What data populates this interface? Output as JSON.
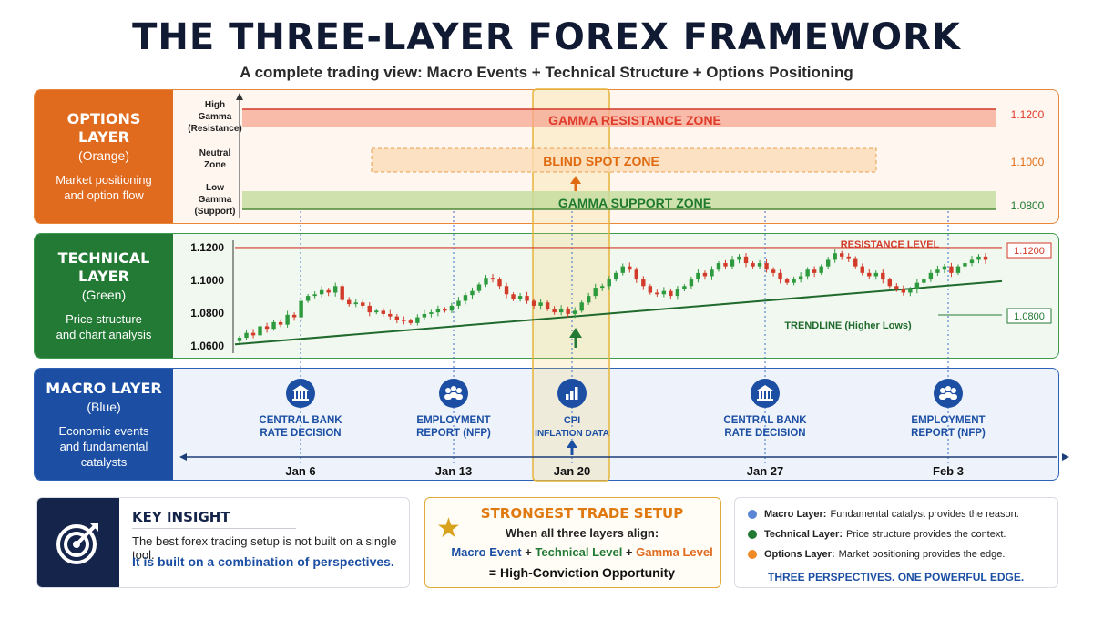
{
  "title": "THE THREE-LAYER FOREX FRAMEWORK",
  "subtitle": "A complete trading view: Macro Events + Technical Structure + Options Positioning",
  "layers": {
    "options": {
      "name": "OPTIONS LAYER",
      "color_name": "(Orange)",
      "desc1": "Market positioning",
      "desc2": "and option flow"
    },
    "technical": {
      "name": "TECHNICAL LAYER",
      "color_name": "(Green)",
      "desc1": "Price structure",
      "desc2": "and chart analysis"
    },
    "macro": {
      "name": "MACRO LAYER",
      "color_name": "(Blue)",
      "desc1": "Economic events",
      "desc2": "and fundamental",
      "desc3": "catalysts"
    }
  },
  "options_panel": {
    "axis_labels": [
      {
        "lines": [
          "High",
          "Gamma",
          "(Resistance)"
        ]
      },
      {
        "lines": [
          "Neutral",
          "Zone"
        ]
      },
      {
        "lines": [
          "Low",
          "Gamma",
          "(Support)"
        ]
      }
    ],
    "zones": [
      {
        "label": "GAMMA RESISTANCE ZONE",
        "price": "1.1200",
        "color": "#e03a2a"
      },
      {
        "label": "BLIND SPOT ZONE",
        "price": "1.1000",
        "color": "#e06a10"
      },
      {
        "label": "GAMMA SUPPORT ZONE",
        "price": "1.0800",
        "color": "#1f7a2f"
      }
    ]
  },
  "chart_data": {
    "type": "candlestick",
    "yticks": [
      "1.1200",
      "1.1000",
      "1.0800",
      "1.0600"
    ],
    "ylim": [
      1.0545,
      1.1255
    ],
    "resistance": {
      "label": "RESISTANCE LEVEL",
      "value": 1.12,
      "value_label": "1.1200"
    },
    "trendline": {
      "label": "TRENDLINE (Higher Lows)",
      "start": 1.061,
      "end": 1.0995
    },
    "support": {
      "value_label": "1.0800"
    },
    "closes": [
      1.065,
      1.068,
      1.0665,
      1.072,
      1.0705,
      1.0745,
      1.073,
      1.079,
      1.0775,
      1.0875,
      1.0905,
      1.0915,
      1.094,
      1.0925,
      1.0965,
      1.088,
      1.0855,
      1.0865,
      1.0845,
      1.0805,
      1.0815,
      1.0795,
      1.078,
      1.076,
      1.0755,
      1.074,
      1.0775,
      1.0795,
      1.0805,
      1.0825,
      1.0815,
      1.0845,
      1.0875,
      1.091,
      1.0935,
      1.0975,
      1.1015,
      1.1005,
      1.0965,
      1.0915,
      1.0885,
      1.0905,
      1.0875,
      1.0845,
      1.0865,
      1.0825,
      1.0805,
      1.0825,
      1.0795,
      1.0815,
      1.0865,
      1.0905,
      1.0955,
      1.0965,
      1.1005,
      1.1045,
      1.1085,
      1.1065,
      1.1005,
      1.0965,
      1.0925,
      1.0915,
      1.0935,
      1.0905,
      1.0945,
      1.0965,
      1.1005,
      1.1045,
      1.1025,
      1.1065,
      1.1105,
      1.1085,
      1.1125,
      1.1145,
      1.1105,
      1.1085,
      1.1105,
      1.1065,
      1.1045,
      1.1005,
      1.0985,
      1.1005,
      1.1025,
      1.1065,
      1.1045,
      1.1085,
      1.1125,
      1.1165,
      1.1145,
      1.1135,
      1.1085,
      1.1045,
      1.1025,
      1.1045,
      1.1005,
      1.0965,
      1.0945,
      1.0925,
      1.0945,
      1.0985,
      1.1005,
      1.1045,
      1.1065,
      1.1085,
      1.1045,
      1.1085,
      1.1105,
      1.1125,
      1.1145,
      1.1125
    ]
  },
  "macro_panel": {
    "events": [
      {
        "icon": "bank-icon",
        "line1": "CENTRAL BANK",
        "line2": "RATE DECISION"
      },
      {
        "icon": "people-icon",
        "line1": "EMPLOYMENT",
        "line2": "REPORT (NFP)"
      },
      {
        "icon": "bar-chart-icon",
        "line1": "CPI",
        "line2": "INFLATION DATA"
      },
      {
        "icon": "bank-icon",
        "line1": "CENTRAL BANK",
        "line2": "RATE DECISION"
      },
      {
        "icon": "people-icon",
        "line1": "EMPLOYMENT",
        "line2": "REPORT (NFP)"
      }
    ],
    "dates": [
      "Jan 6",
      "Jan 13",
      "Jan 20",
      "Jan 27",
      "Feb 3"
    ]
  },
  "insight": {
    "title": "KEY INSIGHT",
    "line1": "The best forex trading setup is not built on a single tool.",
    "line2": "It is built on a combination of perspectives.",
    "icon": "target-icon"
  },
  "setup": {
    "title": "STRONGEST TRADE SETUP",
    "line1": "When all three layers align:",
    "part1": "Macro Event",
    "plus1": " + ",
    "part2": "Technical Level",
    "plus2": " + ",
    "part3": "Gamma Level",
    "line3": "= High-Conviction Opportunity",
    "icon": "star-icon"
  },
  "legend": {
    "items": [
      {
        "bold": "Macro Layer:",
        "text": "Fundamental catalyst provides the reason.",
        "color": "#5b86d6"
      },
      {
        "bold": "Technical Layer:",
        "text": "Price structure provides the context.",
        "color": "#227a35"
      },
      {
        "bold": "Options Layer:",
        "text": "Market positioning provides the edge.",
        "color": "#f08a24"
      }
    ],
    "tagline": "THREE PERSPECTIVES. ONE POWERFUL EDGE."
  },
  "colors": {
    "orange": "#e06a1e",
    "green": "#227a35",
    "blue": "#1c4fa3",
    "candle_up": "#2e9a3e",
    "candle_down": "#d23a2a",
    "highlight": "#f2c14e"
  }
}
